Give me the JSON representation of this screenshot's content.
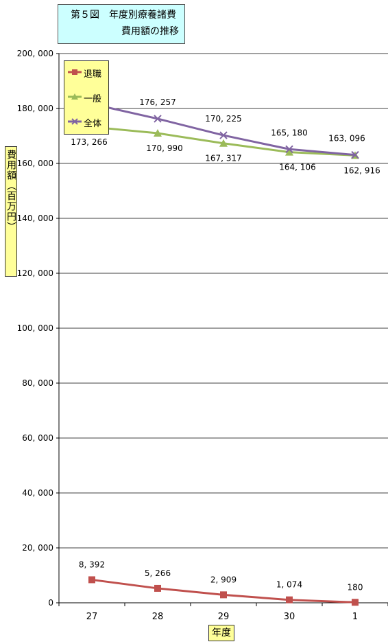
{
  "title": {
    "line1": "第５図　年度別療養諸費",
    "line2": "費用額の推移"
  },
  "ylabel": "費用額（百万円）",
  "xlabel": "年度",
  "chart_data": {
    "type": "line",
    "categories": [
      "27",
      "28",
      "29",
      "30",
      "1"
    ],
    "ylim": [
      0,
      200000
    ],
    "yticks": [
      0,
      20000,
      40000,
      60000,
      80000,
      100000,
      120000,
      140000,
      160000,
      180000,
      200000
    ],
    "ytick_labels": [
      "0",
      "20, 000",
      "40, 000",
      "60, 000",
      "80, 000",
      "100, 000",
      "120, 000",
      "140, 000",
      "160, 000",
      "180, 000",
      "200, 000"
    ],
    "grid": true,
    "legend_position": "top-left",
    "series": [
      {
        "name": "退職",
        "values": [
          8392,
          5266,
          2909,
          1074,
          180
        ],
        "labels": [
          "8, 392",
          "5, 266",
          "2, 909",
          "1, 074",
          "180"
        ],
        "color": "#c0504d",
        "marker": "square"
      },
      {
        "name": "一般",
        "values": [
          173266,
          170990,
          167317,
          164106,
          162916
        ],
        "labels": [
          "173, 266",
          "170, 990",
          "167, 317",
          "164, 106",
          "162, 916"
        ],
        "color": "#9bbb59",
        "marker": "triangle"
      },
      {
        "name": "全体",
        "values": [
          181658,
          176257,
          170225,
          165180,
          163096
        ],
        "labels": [
          "",
          "176, 257",
          "170, 225",
          "165, 180",
          "163, 096"
        ],
        "color": "#8064a2",
        "marker": "x"
      }
    ]
  }
}
